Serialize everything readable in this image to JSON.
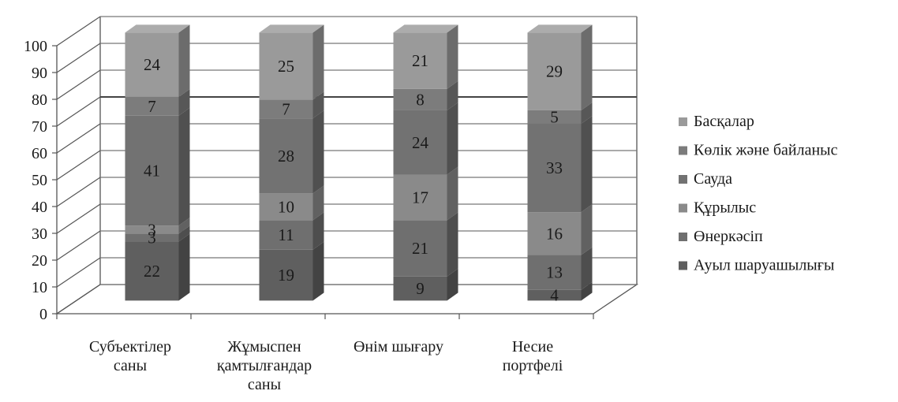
{
  "chart_data": {
    "type": "bar",
    "stacked": true,
    "three_d": true,
    "categories": [
      [
        "Субъектілер",
        "саны"
      ],
      [
        "Жұмыспен",
        "қамтылғандар",
        "саны"
      ],
      [
        "Өнім шығару"
      ],
      [
        "Несие",
        "портфелі"
      ]
    ],
    "series": [
      {
        "name": "Ауыл шаруашылығы",
        "values": [
          22,
          19,
          9,
          4
        ],
        "labels": [
          "22",
          "19",
          "9",
          "4"
        ],
        "color": "#5f5f5f"
      },
      {
        "name": "Өнеркәсіп",
        "values": [
          3,
          11,
          21,
          13
        ],
        "labels": [
          "3",
          "11",
          "21",
          "13"
        ],
        "color": "#6f6f6f"
      },
      {
        "name": "Құрылыс",
        "values": [
          3,
          10,
          17,
          16
        ],
        "labels": [
          "3",
          "10",
          "17",
          "16"
        ],
        "color": "#8a8a8a"
      },
      {
        "name": "Сауда",
        "values": [
          41,
          28,
          24,
          33
        ],
        "labels": [
          "41",
          "28",
          "24",
          "33"
        ],
        "color": "#727272"
      },
      {
        "name": "Көлік және байланыс",
        "values": [
          7,
          7,
          8,
          5
        ],
        "labels": [
          "7",
          "7",
          "8",
          "5"
        ],
        "color": "#7c7c7c"
      },
      {
        "name": "Басқалар",
        "values": [
          24,
          25,
          21,
          29
        ],
        "labels": [
          "24",
          "25",
          "21",
          "29"
        ],
        "color": "#9a9a9a"
      }
    ],
    "ylim": [
      0,
      100
    ],
    "yticks": [
      "0",
      "10",
      "20",
      "30",
      "40",
      "50",
      "60",
      "70",
      "80",
      "90",
      "100"
    ],
    "grid": true,
    "legend": "right",
    "legend_order": "reversed"
  }
}
